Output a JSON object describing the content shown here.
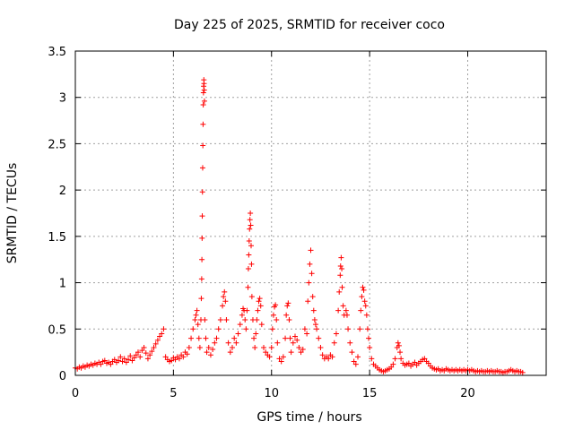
{
  "chart_data": {
    "type": "scatter",
    "title": "Day 225 of 2025, SRMTID for receiver coco",
    "xlabel": "GPS time / hours",
    "ylabel": "SRMTID / TECUs",
    "xlim": [
      0,
      24
    ],
    "ylim": [
      0,
      3.5
    ],
    "x_ticks": [
      0,
      5,
      10,
      15,
      20
    ],
    "x_tick_labels": [
      "0",
      "5",
      "10",
      "15",
      "20"
    ],
    "y_ticks": [
      0,
      0.5,
      1,
      1.5,
      2,
      2.5,
      3,
      3.5
    ],
    "y_tick_labels": [
      "0",
      "0.5",
      "1",
      "1.5",
      "2",
      "2.5",
      "3",
      "3.5"
    ],
    "grid": true,
    "marker": "+",
    "color": "#ff0000",
    "series": [
      {
        "name": "SRMTID",
        "points": [
          [
            0.0,
            0.08
          ],
          [
            0.1,
            0.07
          ],
          [
            0.2,
            0.09
          ],
          [
            0.3,
            0.08
          ],
          [
            0.4,
            0.1
          ],
          [
            0.5,
            0.09
          ],
          [
            0.6,
            0.11
          ],
          [
            0.7,
            0.1
          ],
          [
            0.8,
            0.12
          ],
          [
            0.9,
            0.11
          ],
          [
            1.0,
            0.13
          ],
          [
            1.1,
            0.12
          ],
          [
            1.2,
            0.14
          ],
          [
            1.3,
            0.12
          ],
          [
            1.4,
            0.15
          ],
          [
            1.5,
            0.16
          ],
          [
            1.6,
            0.13
          ],
          [
            1.7,
            0.14
          ],
          [
            1.8,
            0.12
          ],
          [
            1.9,
            0.15
          ],
          [
            2.0,
            0.17
          ],
          [
            2.1,
            0.14
          ],
          [
            2.2,
            0.16
          ],
          [
            2.3,
            0.2
          ],
          [
            2.4,
            0.15
          ],
          [
            2.5,
            0.18
          ],
          [
            2.6,
            0.14
          ],
          [
            2.7,
            0.17
          ],
          [
            2.8,
            0.21
          ],
          [
            2.9,
            0.16
          ],
          [
            3.0,
            0.19
          ],
          [
            3.1,
            0.22
          ],
          [
            3.2,
            0.25
          ],
          [
            3.3,
            0.2
          ],
          [
            3.4,
            0.27
          ],
          [
            3.5,
            0.3
          ],
          [
            3.6,
            0.24
          ],
          [
            3.7,
            0.18
          ],
          [
            3.8,
            0.22
          ],
          [
            3.9,
            0.26
          ],
          [
            4.0,
            0.3
          ],
          [
            4.1,
            0.34
          ],
          [
            4.2,
            0.38
          ],
          [
            4.3,
            0.42
          ],
          [
            4.4,
            0.45
          ],
          [
            4.5,
            0.5
          ],
          [
            4.6,
            0.2
          ],
          [
            4.7,
            0.17
          ],
          [
            4.8,
            0.15
          ],
          [
            4.9,
            0.16
          ],
          [
            5.0,
            0.19
          ],
          [
            5.1,
            0.17
          ],
          [
            5.2,
            0.2
          ],
          [
            5.3,
            0.18
          ],
          [
            5.4,
            0.22
          ],
          [
            5.5,
            0.2
          ],
          [
            5.6,
            0.25
          ],
          [
            5.7,
            0.23
          ],
          [
            5.8,
            0.3
          ],
          [
            5.9,
            0.4
          ],
          [
            6.0,
            0.5
          ],
          [
            6.1,
            0.6
          ],
          [
            6.15,
            0.65
          ],
          [
            6.2,
            0.7
          ],
          [
            6.25,
            0.55
          ],
          [
            6.3,
            0.4
          ],
          [
            6.35,
            0.3
          ],
          [
            6.4,
            0.6
          ],
          [
            6.42,
            0.83
          ],
          [
            6.44,
            1.04
          ],
          [
            6.45,
            1.25
          ],
          [
            6.46,
            1.48
          ],
          [
            6.47,
            1.72
          ],
          [
            6.48,
            1.98
          ],
          [
            6.49,
            2.24
          ],
          [
            6.5,
            2.48
          ],
          [
            6.51,
            2.71
          ],
          [
            6.52,
            2.92
          ],
          [
            6.53,
            3.05
          ],
          [
            6.54,
            3.12
          ],
          [
            6.55,
            3.19
          ],
          [
            6.56,
            3.15
          ],
          [
            6.57,
            3.08
          ],
          [
            6.58,
            2.96
          ],
          [
            6.6,
            0.6
          ],
          [
            6.65,
            0.4
          ],
          [
            6.7,
            0.25
          ],
          [
            6.8,
            0.3
          ],
          [
            6.9,
            0.22
          ],
          [
            7.0,
            0.28
          ],
          [
            7.1,
            0.35
          ],
          [
            7.2,
            0.4
          ],
          [
            7.3,
            0.5
          ],
          [
            7.4,
            0.6
          ],
          [
            7.5,
            0.75
          ],
          [
            7.55,
            0.85
          ],
          [
            7.6,
            0.9
          ],
          [
            7.65,
            0.8
          ],
          [
            7.7,
            0.6
          ],
          [
            7.8,
            0.35
          ],
          [
            7.9,
            0.25
          ],
          [
            8.0,
            0.3
          ],
          [
            8.1,
            0.4
          ],
          [
            8.2,
            0.35
          ],
          [
            8.3,
            0.45
          ],
          [
            8.4,
            0.55
          ],
          [
            8.5,
            0.65
          ],
          [
            8.55,
            0.72
          ],
          [
            8.6,
            0.7
          ],
          [
            8.65,
            0.6
          ],
          [
            8.7,
            0.5
          ],
          [
            8.75,
            0.7
          ],
          [
            8.8,
            0.95
          ],
          [
            8.82,
            1.15
          ],
          [
            8.84,
            1.3
          ],
          [
            8.86,
            1.45
          ],
          [
            8.88,
            1.58
          ],
          [
            8.9,
            1.68
          ],
          [
            8.92,
            1.75
          ],
          [
            8.94,
            1.62
          ],
          [
            8.96,
            1.4
          ],
          [
            8.98,
            1.2
          ],
          [
            9.0,
            0.85
          ],
          [
            9.05,
            0.6
          ],
          [
            9.1,
            0.4
          ],
          [
            9.15,
            0.3
          ],
          [
            9.2,
            0.45
          ],
          [
            9.25,
            0.6
          ],
          [
            9.3,
            0.7
          ],
          [
            9.35,
            0.8
          ],
          [
            9.4,
            0.83
          ],
          [
            9.45,
            0.75
          ],
          [
            9.5,
            0.55
          ],
          [
            9.6,
            0.3
          ],
          [
            9.7,
            0.25
          ],
          [
            9.8,
            0.22
          ],
          [
            9.9,
            0.2
          ],
          [
            10.0,
            0.3
          ],
          [
            10.05,
            0.5
          ],
          [
            10.1,
            0.65
          ],
          [
            10.15,
            0.74
          ],
          [
            10.2,
            0.76
          ],
          [
            10.25,
            0.6
          ],
          [
            10.3,
            0.35
          ],
          [
            10.4,
            0.18
          ],
          [
            10.5,
            0.15
          ],
          [
            10.6,
            0.2
          ],
          [
            10.7,
            0.4
          ],
          [
            10.75,
            0.65
          ],
          [
            10.8,
            0.75
          ],
          [
            10.85,
            0.78
          ],
          [
            10.9,
            0.6
          ],
          [
            10.95,
            0.4
          ],
          [
            11.0,
            0.25
          ],
          [
            11.1,
            0.35
          ],
          [
            11.2,
            0.42
          ],
          [
            11.3,
            0.38
          ],
          [
            11.4,
            0.3
          ],
          [
            11.5,
            0.25
          ],
          [
            11.6,
            0.28
          ],
          [
            11.7,
            0.5
          ],
          [
            11.8,
            0.45
          ],
          [
            11.85,
            0.8
          ],
          [
            11.9,
            1.0
          ],
          [
            11.95,
            1.2
          ],
          [
            12.0,
            1.35
          ],
          [
            12.05,
            1.1
          ],
          [
            12.1,
            0.85
          ],
          [
            12.15,
            0.7
          ],
          [
            12.2,
            0.6
          ],
          [
            12.25,
            0.55
          ],
          [
            12.3,
            0.5
          ],
          [
            12.4,
            0.4
          ],
          [
            12.5,
            0.3
          ],
          [
            12.6,
            0.22
          ],
          [
            12.7,
            0.18
          ],
          [
            12.8,
            0.2
          ],
          [
            12.9,
            0.18
          ],
          [
            13.0,
            0.22
          ],
          [
            13.1,
            0.2
          ],
          [
            13.2,
            0.35
          ],
          [
            13.3,
            0.45
          ],
          [
            13.4,
            0.7
          ],
          [
            13.45,
            0.9
          ],
          [
            13.5,
            1.08
          ],
          [
            13.52,
            1.18
          ],
          [
            13.55,
            1.27
          ],
          [
            13.58,
            1.15
          ],
          [
            13.6,
            0.95
          ],
          [
            13.65,
            0.75
          ],
          [
            13.7,
            0.65
          ],
          [
            13.8,
            0.7
          ],
          [
            13.85,
            0.65
          ],
          [
            13.9,
            0.5
          ],
          [
            14.0,
            0.35
          ],
          [
            14.1,
            0.25
          ],
          [
            14.2,
            0.15
          ],
          [
            14.3,
            0.12
          ],
          [
            14.4,
            0.2
          ],
          [
            14.5,
            0.5
          ],
          [
            14.55,
            0.7
          ],
          [
            14.6,
            0.85
          ],
          [
            14.65,
            0.95
          ],
          [
            14.7,
            0.92
          ],
          [
            14.75,
            0.8
          ],
          [
            14.8,
            0.75
          ],
          [
            14.85,
            0.65
          ],
          [
            14.9,
            0.5
          ],
          [
            14.95,
            0.4
          ],
          [
            15.0,
            0.3
          ],
          [
            15.1,
            0.18
          ],
          [
            15.2,
            0.12
          ],
          [
            15.3,
            0.1
          ],
          [
            15.4,
            0.08
          ],
          [
            15.5,
            0.06
          ],
          [
            15.6,
            0.05
          ],
          [
            15.7,
            0.04
          ],
          [
            15.8,
            0.05
          ],
          [
            15.9,
            0.06
          ],
          [
            16.0,
            0.07
          ],
          [
            16.1,
            0.09
          ],
          [
            16.2,
            0.12
          ],
          [
            16.3,
            0.18
          ],
          [
            16.4,
            0.3
          ],
          [
            16.45,
            0.35
          ],
          [
            16.5,
            0.32
          ],
          [
            16.55,
            0.25
          ],
          [
            16.6,
            0.18
          ],
          [
            16.7,
            0.13
          ],
          [
            16.8,
            0.11
          ],
          [
            16.9,
            0.12
          ],
          [
            17.0,
            0.13
          ],
          [
            17.1,
            0.1
          ],
          [
            17.2,
            0.12
          ],
          [
            17.3,
            0.14
          ],
          [
            17.4,
            0.11
          ],
          [
            17.5,
            0.13
          ],
          [
            17.6,
            0.15
          ],
          [
            17.7,
            0.17
          ],
          [
            17.8,
            0.18
          ],
          [
            17.9,
            0.15
          ],
          [
            18.0,
            0.13
          ],
          [
            18.1,
            0.1
          ],
          [
            18.2,
            0.08
          ],
          [
            18.3,
            0.07
          ],
          [
            18.4,
            0.06
          ],
          [
            18.5,
            0.07
          ],
          [
            18.6,
            0.05
          ],
          [
            18.7,
            0.06
          ],
          [
            18.8,
            0.05
          ],
          [
            18.9,
            0.07
          ],
          [
            19.0,
            0.06
          ],
          [
            19.1,
            0.05
          ],
          [
            19.2,
            0.06
          ],
          [
            19.3,
            0.05
          ],
          [
            19.4,
            0.06
          ],
          [
            19.5,
            0.05
          ],
          [
            19.6,
            0.06
          ],
          [
            19.7,
            0.05
          ],
          [
            19.8,
            0.06
          ],
          [
            19.9,
            0.05
          ],
          [
            20.0,
            0.06
          ],
          [
            20.1,
            0.05
          ],
          [
            20.2,
            0.06
          ],
          [
            20.3,
            0.05
          ],
          [
            20.4,
            0.04
          ],
          [
            20.5,
            0.05
          ],
          [
            20.6,
            0.04
          ],
          [
            20.7,
            0.05
          ],
          [
            20.8,
            0.04
          ],
          [
            20.9,
            0.04
          ],
          [
            21.0,
            0.05
          ],
          [
            21.1,
            0.04
          ],
          [
            21.2,
            0.05
          ],
          [
            21.3,
            0.04
          ],
          [
            21.4,
            0.04
          ],
          [
            21.5,
            0.05
          ],
          [
            21.6,
            0.04
          ],
          [
            21.7,
            0.04
          ],
          [
            21.8,
            0.03
          ],
          [
            21.9,
            0.04
          ],
          [
            22.0,
            0.04
          ],
          [
            22.1,
            0.05
          ],
          [
            22.2,
            0.06
          ],
          [
            22.3,
            0.05
          ],
          [
            22.4,
            0.04
          ],
          [
            22.5,
            0.05
          ],
          [
            22.6,
            0.04
          ],
          [
            22.7,
            0.04
          ],
          [
            22.8,
            0.03
          ]
        ]
      }
    ]
  }
}
